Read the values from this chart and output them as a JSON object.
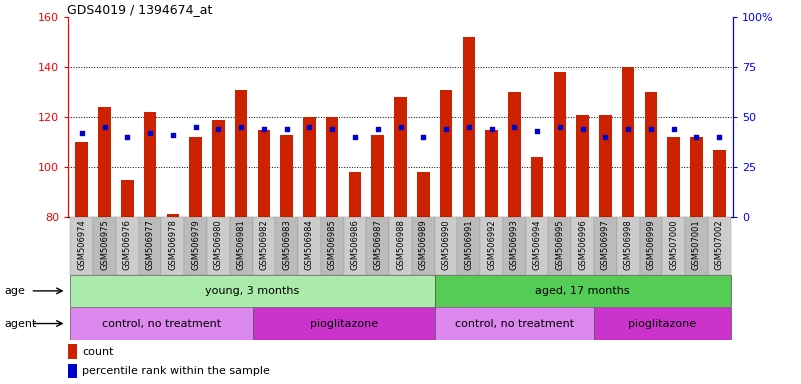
{
  "title": "GDS4019 / 1394674_at",
  "samples": [
    "GSM506974",
    "GSM506975",
    "GSM506976",
    "GSM506977",
    "GSM506978",
    "GSM506979",
    "GSM506980",
    "GSM506981",
    "GSM506982",
    "GSM506983",
    "GSM506984",
    "GSM506985",
    "GSM506986",
    "GSM506987",
    "GSM506988",
    "GSM506989",
    "GSM506990",
    "GSM506991",
    "GSM506992",
    "GSM506993",
    "GSM506994",
    "GSM506995",
    "GSM506996",
    "GSM506997",
    "GSM506998",
    "GSM506999",
    "GSM507000",
    "GSM507001",
    "GSM507002"
  ],
  "counts": [
    110,
    124,
    95,
    122,
    81,
    112,
    119,
    131,
    115,
    113,
    120,
    120,
    98,
    113,
    128,
    98,
    131,
    152,
    115,
    130,
    104,
    138,
    121,
    121,
    140,
    130,
    112,
    112,
    107
  ],
  "percentile_ranks": [
    42,
    45,
    40,
    42,
    41,
    45,
    44,
    45,
    44,
    44,
    45,
    44,
    40,
    44,
    45,
    40,
    44,
    45,
    44,
    45,
    43,
    45,
    44,
    40,
    44,
    44,
    44,
    40,
    40
  ],
  "ylim_left": [
    80,
    160
  ],
  "ylim_right": [
    0,
    100
  ],
  "yticks_left": [
    80,
    100,
    120,
    140,
    160
  ],
  "yticks_right": [
    0,
    25,
    50,
    75,
    100
  ],
  "bar_color": "#cc2200",
  "marker_color": "#0000cc",
  "age_groups": [
    {
      "label": "young, 3 months",
      "start": 0,
      "end": 16,
      "color": "#aaeaaa"
    },
    {
      "label": "aged, 17 months",
      "start": 16,
      "end": 29,
      "color": "#55cc55"
    }
  ],
  "agent_groups": [
    {
      "label": "control, no treatment",
      "start": 0,
      "end": 8,
      "color": "#dd88ee"
    },
    {
      "label": "pioglitazone",
      "start": 8,
      "end": 16,
      "color": "#cc33cc"
    },
    {
      "label": "control, no treatment",
      "start": 16,
      "end": 23,
      "color": "#dd88ee"
    },
    {
      "label": "pioglitazone",
      "start": 23,
      "end": 29,
      "color": "#cc33cc"
    }
  ],
  "age_label": "age",
  "agent_label": "agent",
  "legend_count": "count",
  "legend_percentile": "percentile rank within the sample",
  "grid_dotted_at": [
    100,
    120,
    140
  ],
  "xtick_bg": "#cccccc"
}
